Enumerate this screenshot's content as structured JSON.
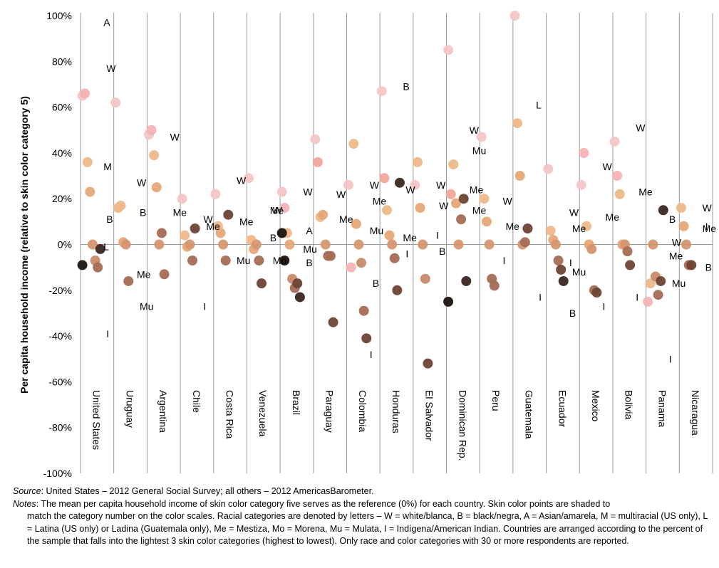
{
  "chart_data": {
    "type": "scatter",
    "ylabel": "Per capita household income (relative to skin color category 5)",
    "ylim": [
      -100,
      100
    ],
    "yticks": [
      100,
      80,
      60,
      40,
      20,
      0,
      -20,
      -40,
      -60,
      -80,
      -100
    ],
    "ytick_labels": [
      "100%",
      "80%",
      "60%",
      "40%",
      "20%",
      "0%",
      "-20%",
      "-40%",
      "-60%",
      "-80%",
      "-100%"
    ],
    "color_scale": [
      "#f6c6c6",
      "#f4b3b3",
      "#f0a899",
      "#eeb88a",
      "#e6a877",
      "#d59670",
      "#c78a6a",
      "#a56b55",
      "#6e4334",
      "#3b2620",
      "#1e1410"
    ],
    "countries": [
      {
        "name": "United States",
        "points": [
          [
            1,
            65
          ],
          [
            2,
            66
          ],
          [
            4,
            36
          ],
          [
            5,
            23
          ],
          [
            6,
            0
          ],
          [
            7,
            -7
          ],
          [
            8,
            -10
          ],
          [
            10,
            -2
          ],
          [
            11,
            -9
          ]
        ],
        "labels": [
          [
            "A",
            97
          ],
          [
            "W",
            77
          ],
          [
            "M",
            34
          ],
          [
            "B",
            11
          ],
          [
            "L",
            -1
          ],
          [
            "I",
            -39
          ]
        ]
      },
      {
        "name": "Uruguay",
        "points": [
          [
            1,
            62
          ],
          [
            4,
            16
          ],
          [
            4,
            17
          ],
          [
            5,
            1
          ],
          [
            6,
            0
          ],
          [
            8,
            -16
          ]
        ],
        "labels": [
          [
            "W",
            27
          ],
          [
            "B",
            14
          ],
          [
            "Me",
            -13
          ],
          [
            "Mu",
            -27
          ]
        ]
      },
      {
        "name": "Argentina",
        "points": [
          [
            1,
            48
          ],
          [
            2,
            50
          ],
          [
            4,
            39
          ],
          [
            5,
            25
          ],
          [
            6,
            0
          ],
          [
            8,
            5
          ],
          [
            8,
            -13
          ]
        ],
        "labels": [
          [
            "W",
            47
          ],
          [
            "Me",
            14
          ],
          [
            "Mu",
            null
          ]
        ]
      },
      {
        "name": "Chile",
        "points": [
          [
            1,
            20
          ],
          [
            4,
            4
          ],
          [
            5,
            -1
          ],
          [
            6,
            0
          ],
          [
            8,
            -7
          ],
          [
            9,
            7
          ]
        ],
        "labels": [
          [
            "W",
            11
          ],
          [
            "Me",
            8
          ],
          [
            "I",
            -27
          ]
        ]
      },
      {
        "name": "Costa Rica",
        "points": [
          [
            1,
            22
          ],
          [
            4,
            8
          ],
          [
            5,
            5
          ],
          [
            6,
            0
          ],
          [
            8,
            -7
          ],
          [
            9,
            13
          ]
        ],
        "labels": [
          [
            "W",
            28
          ],
          [
            "Me",
            10
          ],
          [
            "Mu",
            -7
          ]
        ]
      },
      {
        "name": "Venezuela",
        "points": [
          [
            1,
            29
          ],
          [
            4,
            2
          ],
          [
            5,
            -2
          ],
          [
            6,
            0
          ],
          [
            8,
            -7
          ],
          [
            9,
            -17
          ]
        ],
        "labels": [
          [
            "Me",
            15
          ],
          [
            "W",
            15
          ],
          [
            "B",
            3
          ],
          [
            "Mo",
            -7
          ]
        ]
      },
      {
        "name": "Brazil",
        "points": [
          [
            1,
            23
          ],
          [
            2,
            16
          ],
          [
            4,
            5
          ],
          [
            5,
            0
          ],
          [
            7,
            -15
          ],
          [
            8,
            -19
          ],
          [
            9,
            -17
          ],
          [
            10,
            -23
          ],
          [
            11,
            5
          ],
          [
            11,
            -7
          ]
        ],
        "labels": [
          [
            "W",
            23
          ],
          [
            "A",
            6
          ],
          [
            "Mu",
            -2
          ],
          [
            "B",
            -8
          ]
        ]
      },
      {
        "name": "Paraguay",
        "points": [
          [
            1,
            46
          ],
          [
            3,
            36
          ],
          [
            4,
            12
          ],
          [
            5,
            13
          ],
          [
            6,
            0
          ],
          [
            8,
            -5
          ],
          [
            8,
            -5
          ],
          [
            9,
            -34
          ]
        ],
        "labels": [
          [
            "W",
            22
          ],
          [
            "Me",
            11
          ]
        ]
      },
      {
        "name": "Colombia",
        "points": [
          [
            1,
            26
          ],
          [
            2,
            -10
          ],
          [
            4,
            44
          ],
          [
            5,
            9
          ],
          [
            6,
            0
          ],
          [
            7,
            -8
          ],
          [
            8,
            -29
          ],
          [
            9,
            -41
          ]
        ],
        "labels": [
          [
            "W",
            26
          ],
          [
            "Me",
            19
          ],
          [
            "Mu",
            6
          ],
          [
            "B",
            -17
          ],
          [
            "I",
            -48
          ]
        ]
      },
      {
        "name": "Honduras",
        "points": [
          [
            1,
            67
          ],
          [
            3,
            29
          ],
          [
            4,
            15
          ],
          [
            5,
            4
          ],
          [
            6,
            0
          ],
          [
            8,
            -6
          ],
          [
            9,
            -20
          ],
          [
            10,
            27
          ]
        ],
        "labels": [
          [
            "B",
            69
          ],
          [
            "W",
            24
          ],
          [
            "Me",
            3
          ],
          [
            "I",
            -4
          ]
        ]
      },
      {
        "name": "El Salvador",
        "points": [
          [
            1,
            26
          ],
          [
            4,
            36
          ],
          [
            5,
            16
          ],
          [
            6,
            0
          ],
          [
            7,
            -15
          ],
          [
            9,
            -52
          ]
        ],
        "labels": [
          [
            "W",
            26
          ],
          [
            "W",
            17
          ],
          [
            "I",
            4
          ],
          [
            "B",
            -3
          ]
        ]
      },
      {
        "name": "Dominican Rep.",
        "points": [
          [
            1,
            85
          ],
          [
            3,
            22
          ],
          [
            4,
            35
          ],
          [
            5,
            18
          ],
          [
            6,
            0
          ],
          [
            8,
            11
          ],
          [
            9,
            20
          ],
          [
            10,
            -16
          ],
          [
            11,
            -25
          ]
        ],
        "labels": [
          [
            "W",
            50
          ],
          [
            "Mu",
            41
          ],
          [
            "Me",
            24
          ],
          [
            "Me",
            15
          ]
        ]
      },
      {
        "name": "Peru",
        "points": [
          [
            1,
            47
          ],
          [
            4,
            20
          ],
          [
            5,
            10
          ],
          [
            6,
            0
          ],
          [
            8,
            -15
          ],
          [
            8,
            -18
          ]
        ],
        "labels": [
          [
            "W",
            19
          ],
          [
            "Me",
            8
          ],
          [
            "I",
            -7
          ]
        ]
      },
      {
        "name": "Guatemala",
        "points": [
          [
            1,
            100
          ],
          [
            4,
            53
          ],
          [
            5,
            30
          ],
          [
            6,
            0
          ],
          [
            8,
            1
          ],
          [
            9,
            7
          ]
        ],
        "labels": [
          [
            "L",
            61
          ],
          [
            "I",
            -23
          ]
        ]
      },
      {
        "name": "Ecuador",
        "points": [
          [
            1,
            33
          ],
          [
            4,
            6
          ],
          [
            5,
            2
          ],
          [
            6,
            0
          ],
          [
            8,
            -7
          ],
          [
            9,
            -11
          ],
          [
            10,
            -16
          ]
        ],
        "labels": [
          [
            "W",
            14
          ],
          [
            "Me",
            7
          ],
          [
            "I",
            -8
          ],
          [
            "Mu",
            -12
          ],
          [
            "B",
            -30
          ]
        ]
      },
      {
        "name": "Mexico",
        "points": [
          [
            1,
            26
          ],
          [
            2,
            40
          ],
          [
            4,
            8
          ],
          [
            5,
            0
          ],
          [
            6,
            -2
          ],
          [
            8,
            -20
          ],
          [
            9,
            -21
          ]
        ],
        "labels": [
          [
            "W",
            34
          ],
          [
            "Me",
            12
          ],
          [
            "I",
            -27
          ]
        ]
      },
      {
        "name": "Bolivia",
        "points": [
          [
            1,
            45
          ],
          [
            2,
            30
          ],
          [
            4,
            22
          ],
          [
            5,
            0
          ],
          [
            6,
            0
          ],
          [
            8,
            -3
          ],
          [
            9,
            -9
          ]
        ],
        "labels": [
          [
            "W",
            51
          ],
          [
            "Me",
            23
          ],
          [
            "I",
            -23
          ]
        ]
      },
      {
        "name": "Panama",
        "points": [
          [
            2,
            -25
          ],
          [
            4,
            -17
          ],
          [
            6,
            0
          ],
          [
            7,
            -14
          ],
          [
            8,
            -22
          ],
          [
            9,
            -16
          ],
          [
            10,
            15
          ]
        ],
        "labels": [
          [
            "B",
            11
          ],
          [
            "W",
            1
          ],
          [
            "Me",
            -5
          ],
          [
            "Mu",
            -17
          ],
          [
            "I",
            -50
          ]
        ]
      },
      {
        "name": "Nicaragua",
        "points": [
          [
            4,
            16
          ],
          [
            5,
            8
          ],
          [
            6,
            0
          ],
          [
            8,
            -9
          ],
          [
            9,
            -9
          ]
        ],
        "labels": [
          [
            "W",
            16
          ],
          [
            "I",
            8
          ],
          [
            "Me",
            7
          ],
          [
            "B",
            -10
          ]
        ]
      }
    ]
  },
  "notes": {
    "source_label": "Source",
    "source_text": ": United States – 2012 General Social Survey; all others – 2012 AmericasBarometer.",
    "notes_label": "Notes",
    "notes_line1": ": The mean per capita household income of skin color category five serves as the reference (0%) for each country. Skin color points are shaded to",
    "notes_rest": "match the category number on the color scales. Racial categories are denoted by letters – W = white/blanca, B = black/negra, A = Asian/amarela, M = multiracial (US only), L = Latina (US only) or Ladina (Guatemala only), Me = Mestiza, Mo = Morena, Mu = Mulata, I = Indígena/American Indian. Countries are arranged according to the percent of the sample that falls into the lightest 3 skin color categories (highest to lowest). Only race and color categories with 30 or more respondents are reported."
  }
}
